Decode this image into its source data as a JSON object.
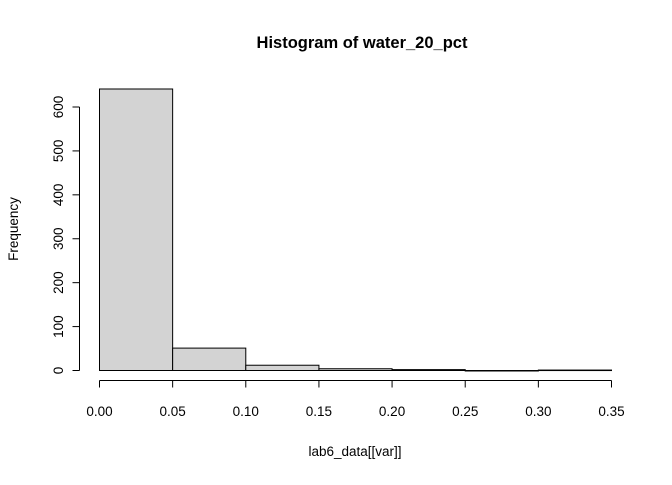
{
  "chart_data": {
    "type": "bar",
    "subtype": "histogram",
    "title": "Histogram of water_20_pct",
    "xlabel": "lab6_data[[var]]",
    "ylabel": "Frequency",
    "bins": [
      {
        "x0": 0.0,
        "x1": 0.05,
        "count": 641
      },
      {
        "x0": 0.05,
        "x1": 0.1,
        "count": 51
      },
      {
        "x0": 0.1,
        "x1": 0.15,
        "count": 12
      },
      {
        "x0": 0.15,
        "x1": 0.2,
        "count": 4
      },
      {
        "x0": 0.2,
        "x1": 0.25,
        "count": 2
      },
      {
        "x0": 0.25,
        "x1": 0.3,
        "count": 0
      },
      {
        "x0": 0.3,
        "x1": 0.35,
        "count": 1
      }
    ],
    "xlim": [
      0.0,
      0.35
    ],
    "ylim": [
      0,
      650
    ],
    "xticks": [
      "0.00",
      "0.05",
      "0.10",
      "0.15",
      "0.20",
      "0.25",
      "0.30",
      "0.35"
    ],
    "yticks": [
      "0",
      "100",
      "200",
      "300",
      "400",
      "500",
      "600"
    ],
    "grid": false,
    "legend": "none",
    "bar_fill": "#d3d3d3",
    "bar_stroke": "#000000"
  }
}
